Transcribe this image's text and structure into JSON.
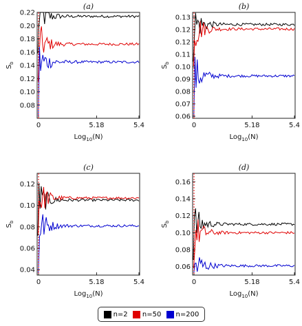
{
  "chart_data": [
    {
      "type": "line",
      "title": "(a)",
      "ylabel": "S_b",
      "xlabel": "Log10(N)",
      "x_ticks": [
        "0",
        "5.18",
        "5.4"
      ],
      "ylim": [
        0.06,
        0.22
      ],
      "y_ticks": [
        "0.08",
        "0.10",
        "0.12",
        "0.14",
        "0.16",
        "0.18",
        "0.20",
        "0.22"
      ],
      "series": [
        {
          "name": "n=2",
          "color": "#000000",
          "steady": 0.214
        },
        {
          "name": "n=50",
          "color": "#e00000",
          "steady": 0.172
        },
        {
          "name": "n=200",
          "color": "#0000d0",
          "steady": 0.145
        }
      ]
    },
    {
      "type": "line",
      "title": "(b)",
      "ylabel": "S_b",
      "xlabel": "Log10(N)",
      "x_ticks": [
        "0",
        "5.18",
        "5.4"
      ],
      "ylim": [
        0.06,
        0.13
      ],
      "y_ticks": [
        "0.06",
        "0.07",
        "0.08",
        "0.09",
        "0.10",
        "0.11",
        "0.12",
        "0.12",
        "0.13"
      ],
      "series": [
        {
          "name": "n=2",
          "color": "#000000",
          "steady": 0.122
        },
        {
          "name": "n=50",
          "color": "#e00000",
          "steady": 0.119
        },
        {
          "name": "n=200",
          "color": "#0000d0",
          "steady": 0.088
        }
      ]
    },
    {
      "type": "line",
      "title": "(c)",
      "ylabel": "S_b",
      "xlabel": "Log10(N)",
      "x_ticks": [
        "0",
        "5.18",
        "5.4"
      ],
      "ylim": [
        0.035,
        0.13
      ],
      "y_ticks": [
        "0.04",
        "0.06",
        "0.08",
        "0.10",
        "0.12"
      ],
      "series": [
        {
          "name": "n=2",
          "color": "#000000",
          "steady": 0.105
        },
        {
          "name": "n=50",
          "color": "#e00000",
          "steady": 0.107
        },
        {
          "name": "n=200",
          "color": "#0000d0",
          "steady": 0.081
        }
      ]
    },
    {
      "type": "line",
      "title": "(d)",
      "ylabel": "S_b",
      "xlabel": "Log10(N)",
      "x_ticks": [
        "0",
        "5.18",
        "5.4"
      ],
      "ylim": [
        0.05,
        0.17
      ],
      "y_ticks": [
        "0.06",
        "0.08",
        "0.10",
        "0.12",
        "0.14",
        "0.16"
      ],
      "series": [
        {
          "name": "n=2",
          "color": "#000000",
          "steady": 0.11
        },
        {
          "name": "n=50",
          "color": "#e00000",
          "steady": 0.1
        },
        {
          "name": "n=200",
          "color": "#0000d0",
          "steady": 0.061
        }
      ]
    }
  ],
  "legend": {
    "entries": [
      {
        "label": "n=2",
        "color": "#000000"
      },
      {
        "label": "n=50",
        "color": "#e00000"
      },
      {
        "label": "n=200",
        "color": "#0000d0"
      }
    ]
  }
}
